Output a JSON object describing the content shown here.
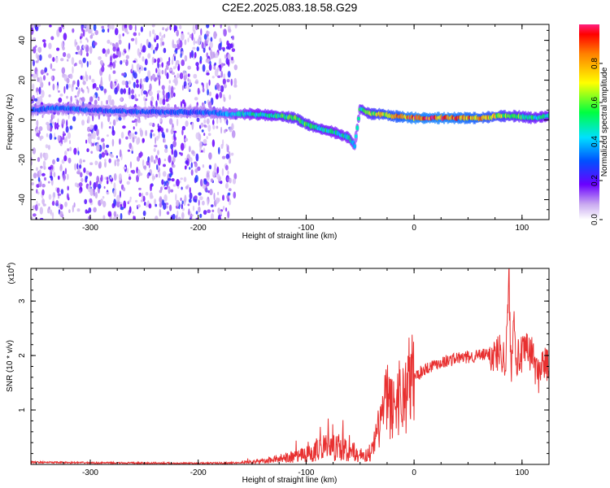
{
  "title": "C2E2.2025.083.18.58.G29",
  "chart_data": [
    {
      "type": "heatmap",
      "xlabel": "Height of straight line (km)",
      "ylabel": "Frequency (Hz)",
      "xlim": [
        -355,
        125
      ],
      "ylim": [
        -50,
        48
      ],
      "x_ticks": [
        -300,
        -200,
        -100,
        0,
        100
      ],
      "x_tick_labels": [
        "-300",
        "-200",
        "-100",
        "0",
        "100"
      ],
      "y_ticks": [
        -40,
        -20,
        0,
        20,
        40
      ],
      "y_tick_labels": [
        "-40",
        "-20",
        "0",
        "20",
        "40"
      ],
      "noise_region_x": [
        -355,
        -165
      ],
      "ridge": {
        "x": [
          -355,
          -330,
          -300,
          -250,
          -200,
          -170,
          -150,
          -125,
          -110,
          -100,
          -90,
          -75,
          -60,
          -55,
          -50,
          -45,
          -40,
          -35,
          -30,
          -20,
          0,
          30,
          60,
          80,
          95,
          110,
          125
        ],
        "y": [
          5,
          6,
          5,
          4,
          4,
          3,
          3,
          2,
          1,
          -2,
          -4,
          -6,
          -9,
          -13,
          6,
          4,
          3,
          3,
          3,
          2,
          1,
          1,
          1,
          2,
          2,
          1,
          2
        ],
        "amplitude": [
          0.3,
          0.35,
          0.3,
          0.3,
          0.3,
          0.4,
          0.5,
          0.55,
          0.6,
          0.6,
          0.55,
          0.5,
          0.5,
          0.45,
          0.55,
          0.6,
          0.65,
          0.7,
          0.75,
          0.8,
          0.95,
          0.95,
          0.85,
          0.7,
          0.6,
          0.55,
          0.5
        ]
      },
      "colorbar": {
        "label": "Normalized spectral amplitude",
        "range": [
          0,
          1
        ],
        "ticks": [
          0.0,
          0.2,
          0.4,
          0.6,
          0.8
        ],
        "tick_labels": [
          "0.0",
          "0.2",
          "0.4",
          "0.6",
          "0.8"
        ]
      }
    },
    {
      "type": "line",
      "xlabel": "Height of straight line (km)",
      "ylabel": "SNR (10 * v/v)",
      "scale_label": "(x10",
      "scale_exp": "4",
      "scale_close": ")",
      "xlim": [
        -355,
        125
      ],
      "ylim": [
        0,
        3.6
      ],
      "x_ticks": [
        -300,
        -200,
        -100,
        0,
        100
      ],
      "x_tick_labels": [
        "-300",
        "-200",
        "-100",
        "0",
        "100"
      ],
      "y_ticks": [
        1,
        2,
        3
      ],
      "y_tick_labels": [
        "1",
        "2",
        "3"
      ],
      "series": [
        {
          "color": "#e83030",
          "x": [
            -355,
            -300,
            -200,
            -160,
            -140,
            -120,
            -100,
            -90,
            -80,
            -70,
            -60,
            -50,
            -40,
            -35,
            -30,
            -25,
            -20,
            -15,
            -10,
            -5,
            0,
            10,
            20,
            30,
            40,
            50,
            60,
            70,
            75,
            80,
            85,
            88,
            90,
            92,
            95,
            100,
            105,
            110,
            115,
            118,
            120,
            125
          ],
          "y": [
            0.04,
            0.03,
            0.02,
            0.03,
            0.06,
            0.12,
            0.18,
            0.25,
            0.3,
            0.32,
            0.25,
            0.12,
            0.2,
            0.5,
            0.9,
            1.2,
            1.0,
            1.3,
            1.2,
            1.5,
            1.6,
            1.75,
            1.85,
            1.9,
            1.95,
            1.97,
            2.0,
            2.02,
            2.0,
            2.1,
            1.9,
            3.4,
            1.5,
            2.9,
            1.95,
            2.0,
            2.1,
            2.0,
            1.6,
            1.9,
            1.85,
            1.8
          ]
        }
      ]
    }
  ]
}
